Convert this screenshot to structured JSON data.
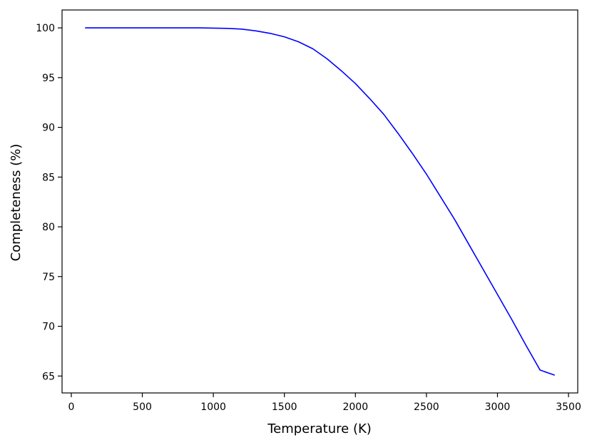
{
  "chart_data": {
    "type": "line",
    "title": "",
    "xlabel": "Temperature (K)",
    "ylabel": "Completeness (%)",
    "xlim": [
      -65,
      3565
    ],
    "ylim": [
      63.3,
      101.8
    ],
    "xticks": [
      0,
      500,
      1000,
      1500,
      2000,
      2500,
      3000,
      3500
    ],
    "yticks": [
      65,
      70,
      75,
      80,
      85,
      90,
      95,
      100
    ],
    "xtick_labels": [
      "0",
      "500",
      "1000",
      "1500",
      "2000",
      "2500",
      "3000",
      "3500"
    ],
    "ytick_labels": [
      "65",
      "70",
      "75",
      "80",
      "85",
      "90",
      "95",
      "100"
    ],
    "grid": false,
    "series": [
      {
        "color": "#0000ff",
        "x": [
          100,
          500,
          900,
          1000,
          1100,
          1200,
          1300,
          1400,
          1500,
          1600,
          1700,
          1800,
          1900,
          2000,
          2100,
          2200,
          2300,
          2400,
          2500,
          2600,
          2700,
          2800,
          2900,
          3000,
          3100,
          3200,
          3300,
          3400
        ],
        "y": [
          100,
          100,
          100,
          99.98,
          99.95,
          99.88,
          99.7,
          99.45,
          99.1,
          98.6,
          97.9,
          96.9,
          95.7,
          94.4,
          92.9,
          91.3,
          89.4,
          87.4,
          85.3,
          83.0,
          80.7,
          78.2,
          75.7,
          73.2,
          70.7,
          68.1,
          65.6,
          65.1
        ]
      }
    ]
  }
}
